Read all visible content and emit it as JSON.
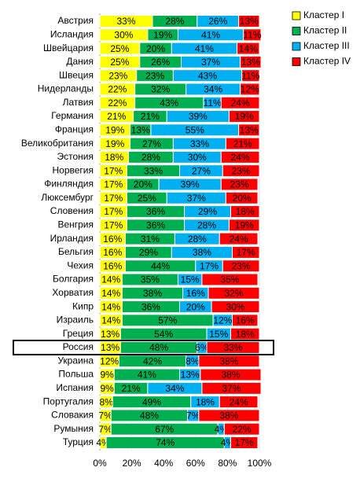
{
  "chart_data": {
    "type": "stacked-bar-horizontal",
    "categories": [
      "Австрия",
      "Исландия",
      "Швейцария",
      "Дания",
      "Швеция",
      "Нидерланды",
      "Латвия",
      "Германия",
      "Франция",
      "Великобритания",
      "Эстония",
      "Норвегия",
      "Финляндия",
      "Люксембург",
      "Словения",
      "Венгрия",
      "Ирландия",
      "Бельгия",
      "Чехия",
      "Болгария",
      "Хорватия",
      "Кипр",
      "Израиль",
      "Греция",
      "Россия",
      "Украина",
      "Польша",
      "Испания",
      "Португалия",
      "Словакия",
      "Румыния",
      "Турция"
    ],
    "series": [
      {
        "name": "Кластер I",
        "color": "#ffff00",
        "values": [
          33,
          30,
          25,
          25,
          23,
          22,
          22,
          21,
          19,
          19,
          18,
          17,
          17,
          17,
          17,
          17,
          16,
          16,
          16,
          14,
          14,
          14,
          14,
          13,
          13,
          12,
          9,
          9,
          8,
          7,
          7,
          4
        ],
        "value_labels": [
          "33%",
          "30%",
          "25%",
          "25%",
          "23%",
          "22%",
          "22%",
          "21%",
          "19%",
          "19%",
          "18%",
          "17%",
          "17%",
          "17%",
          "17%",
          "17%",
          "16%",
          "16%",
          "16%",
          "14%",
          "14%",
          "14%",
          "14%",
          "13%",
          "13%",
          "12%",
          "9%",
          "9%",
          "8%",
          "7%",
          "7%",
          "4%"
        ]
      },
      {
        "name": "Кластер II",
        "color": "#00b050",
        "values": [
          28,
          19,
          20,
          26,
          23,
          32,
          43,
          21,
          13,
          27,
          28,
          33,
          20,
          25,
          36,
          36,
          31,
          29,
          44,
          35,
          38,
          36,
          57,
          54,
          48,
          42,
          41,
          21,
          49,
          48,
          67,
          74
        ],
        "value_labels": [
          "28%",
          "19%",
          "20%",
          "26%",
          "23%",
          "32%",
          "43%",
          "21%",
          "13%",
          "27%",
          "28%",
          "33%",
          "20%",
          "25%",
          "36%",
          "36%",
          "31%",
          "29%",
          "44%",
          "35%",
          "38%",
          "36%",
          "57%",
          "54%",
          "48%",
          "42%",
          "41%",
          "21%",
          "49%",
          "48%",
          "67%",
          "74%"
        ]
      },
      {
        "name": "Кластер III",
        "color": "#00b0f0",
        "values": [
          26,
          41,
          41,
          37,
          43,
          34,
          11,
          39,
          55,
          33,
          30,
          27,
          39,
          37,
          29,
          28,
          28,
          38,
          17,
          15,
          16,
          20,
          12,
          15,
          6,
          8,
          13,
          34,
          18,
          7,
          4,
          4
        ],
        "value_labels": [
          "26%",
          "41%",
          "41%",
          "37%",
          "43%",
          "34%",
          "11%",
          "39%",
          "55%",
          "33%",
          "30%",
          "27%",
          "39%",
          "37%",
          "29%",
          "28%",
          "28%",
          "38%",
          "17%",
          "15%",
          "16%",
          "20%",
          "12%",
          "15%",
          "6%",
          "8%",
          "13%",
          "34%",
          "18%",
          "7%",
          "4%",
          "4%"
        ]
      },
      {
        "name": "Кластер IV",
        "color": "#ff0000",
        "values": [
          13,
          11,
          14,
          13,
          11,
          12,
          24,
          19,
          13,
          21,
          24,
          23,
          23,
          20,
          18,
          19,
          24,
          17,
          23,
          35,
          32,
          30,
          16,
          18,
          33,
          38,
          38,
          37,
          24,
          38,
          22,
          17
        ],
        "value_labels": [
          "13%",
          "11%",
          "14%",
          "13%",
          "11%",
          "12%",
          "24%",
          "19%",
          "13%",
          "21%",
          "24%",
          "23%",
          "23%",
          "20%",
          "18%",
          "19%",
          "24%",
          "17%",
          "23%",
          "35%",
          "32%",
          "30%",
          "16%",
          "18%",
          "33%",
          "38%",
          "38%",
          "37%",
          "24%",
          "38%",
          "22%",
          "17%"
        ]
      }
    ],
    "xlim": [
      0,
      100
    ],
    "xticks": [
      {
        "value": 0,
        "label": "0%"
      },
      {
        "value": 20,
        "label": "20%"
      },
      {
        "value": 40,
        "label": "40%"
      },
      {
        "value": 60,
        "label": "60%"
      },
      {
        "value": 80,
        "label": "80%"
      },
      {
        "value": 100,
        "label": "100%"
      }
    ],
    "grid": true,
    "legend": "top-right"
  }
}
